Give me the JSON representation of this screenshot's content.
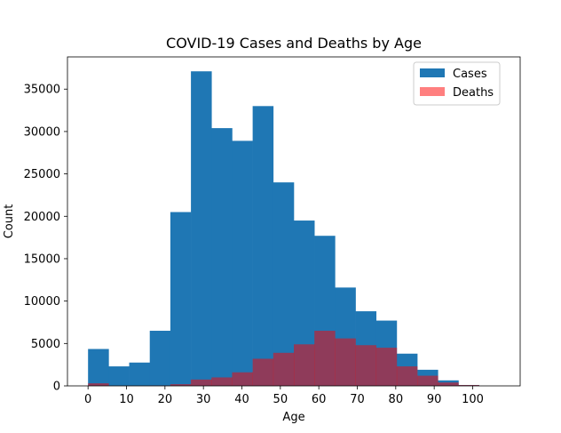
{
  "chart_data": {
    "type": "bar",
    "title": "COVID-19 Cases and Deaths by Age",
    "xlabel": "Age",
    "ylabel": "Count",
    "xlim": [
      -5.35,
      112.35
    ],
    "ylim": [
      0,
      38800
    ],
    "x_ticks": [
      0,
      10,
      20,
      30,
      40,
      50,
      60,
      70,
      80,
      90,
      100
    ],
    "y_ticks": [
      0,
      5000,
      10000,
      15000,
      20000,
      25000,
      30000,
      35000
    ],
    "bin_edges": [
      0,
      5.35,
      10.7,
      16.05,
      21.4,
      26.75,
      32.1,
      37.45,
      42.8,
      48.15,
      53.5,
      58.85,
      64.2,
      69.55,
      74.9,
      80.25,
      85.6,
      90.95,
      96.3,
      101.65,
      107
    ],
    "legend_position": "top-right",
    "grid": false,
    "series": [
      {
        "name": "Cases",
        "color": "#1f77b4",
        "alpha": 1.0,
        "values": [
          4350,
          2300,
          2750,
          6500,
          20500,
          37100,
          30400,
          28900,
          33000,
          24000,
          19500,
          17700,
          11600,
          8800,
          7700,
          3800,
          1900,
          650,
          100,
          0
        ]
      },
      {
        "name": "Deaths",
        "color": "#ff0000",
        "alpha": 0.5,
        "values": [
          300,
          20,
          20,
          50,
          200,
          750,
          1000,
          1600,
          3200,
          3900,
          4900,
          6500,
          5600,
          4800,
          4500,
          2300,
          1200,
          400,
          100,
          0
        ]
      }
    ]
  }
}
